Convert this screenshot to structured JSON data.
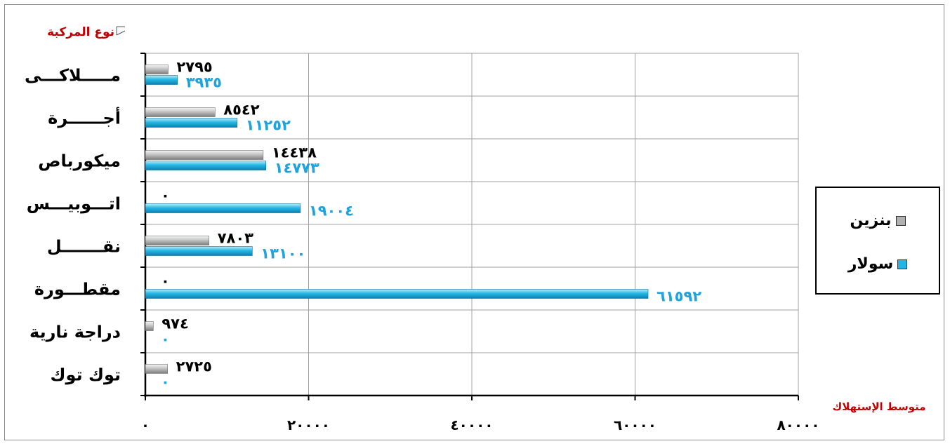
{
  "chart_data": {
    "type": "bar",
    "orientation": "horizontal",
    "title": "",
    "ylabel": "نوع المركبة",
    "xlabel": "متوسط الإستهلاك",
    "categories": [
      "ملاكى",
      "أجرة",
      "ميكورباص",
      "اتوبيس",
      "نقل",
      "مقطورة",
      "دراجة نارية",
      "توك توك"
    ],
    "category_labels": [
      "مـــــلاكـــى",
      "أجــــــرة",
      "ميكورباص",
      "اتـــوبيـــس",
      "نقـــــــل",
      "مقطـــورة",
      "دراجة نارية",
      "توك توك"
    ],
    "series": [
      {
        "name": "بنزين",
        "color": "#b0b0b0",
        "label_color": "#000000",
        "values": [
          2795,
          8542,
          14438,
          0,
          7803,
          0,
          974,
          2725
        ],
        "labels": [
          "٢٧٩٥",
          "٨٥٤٢",
          "١٤٤٣٨",
          "٠",
          "٧٨٠٣",
          "٠",
          "٩٧٤",
          "٢٧٢٥"
        ]
      },
      {
        "name": "سولار",
        "color": "#1fb6e6",
        "label_color": "#1fa3dd",
        "values": [
          3935,
          11252,
          14773,
          19004,
          13100,
          61592,
          0,
          0
        ],
        "labels": [
          "٣٩٣٥",
          "١١٢٥٢",
          "١٤٧٧٣",
          "١٩٠٠٤",
          "١٣١٠٠",
          "٦١٥٩٢",
          "٠",
          "٠"
        ]
      }
    ],
    "xlim": [
      0,
      80000
    ],
    "x_ticks": [
      0,
      20000,
      40000,
      60000,
      80000
    ],
    "x_tick_labels": [
      "٠",
      "٢٠٠٠٠",
      "٤٠٠٠٠",
      "٦٠٠٠٠",
      "٨٠٠٠٠"
    ],
    "grid": true,
    "legend_position": "right"
  }
}
